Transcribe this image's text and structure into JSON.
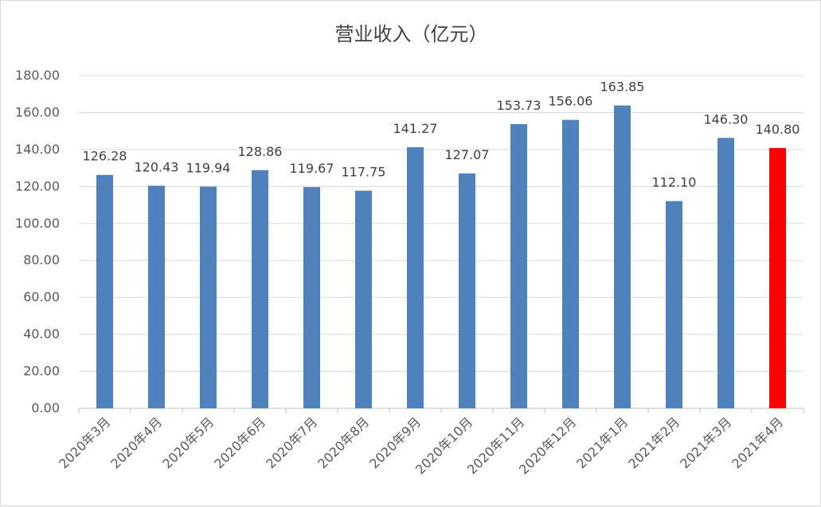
{
  "chart_data": {
    "type": "bar",
    "title": "营业收入（亿元）",
    "xlabel": "",
    "ylabel": "",
    "ylim": [
      0,
      180
    ],
    "y_ticks": [
      "0.00",
      "20.00",
      "40.00",
      "60.00",
      "80.00",
      "100.00",
      "120.00",
      "140.00",
      "160.00",
      "180.00"
    ],
    "grid": true,
    "legend": "none",
    "categories": [
      "2020年3月",
      "2020年4月",
      "2020年5月",
      "2020年6月",
      "2020年7月",
      "2020年8月",
      "2020年9月",
      "2020年10月",
      "2020年11月",
      "2020年12月",
      "2021年1月",
      "2021年2月",
      "2021年3月",
      "2021年4月"
    ],
    "values": [
      126.28,
      120.43,
      119.94,
      128.86,
      119.67,
      117.75,
      141.27,
      127.07,
      153.73,
      156.06,
      163.85,
      112.1,
      146.3,
      140.8
    ],
    "data_labels": [
      "126.28",
      "120.43",
      "119.94",
      "128.86",
      "119.67",
      "117.75",
      "141.27",
      "127.07",
      "153.73",
      "156.06",
      "163.85",
      "112.10",
      "146.30",
      "140.80"
    ],
    "colors": {
      "bar": "#4f81bd",
      "highlight": "#ff0000",
      "grid": "#d9d9d9",
      "axis": "#bfbfbf"
    },
    "highlight_index": 13
  }
}
